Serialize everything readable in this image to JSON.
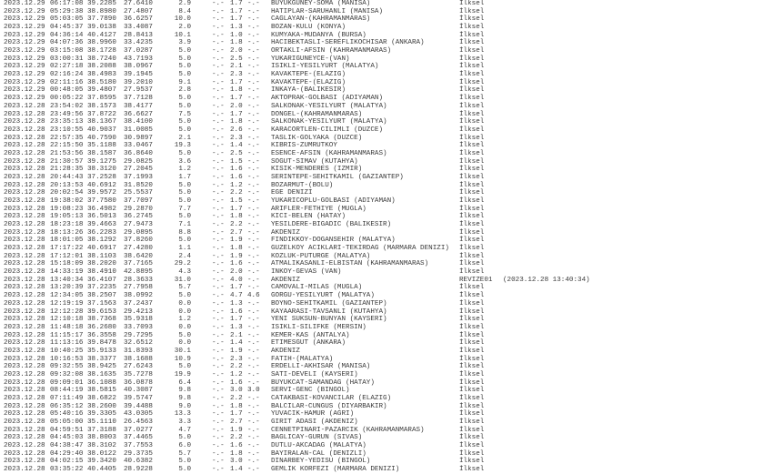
{
  "rows": [
    {
      "date": "2023.12.29",
      "time": "06:17:08",
      "lat": "39.2285",
      "lon": "27.6410",
      "depth": "2.9",
      "md": "-.-",
      "ml": "1.7",
      "mw": "-.-",
      "location": "BUYUKGUNEY-SOMA (MANISA)",
      "status": "İlksel"
    },
    {
      "date": "2023.12.29",
      "time": "05:29:38",
      "lat": "38.8980",
      "lon": "27.4807",
      "depth": "8.4",
      "md": "-.-",
      "ml": "1.7",
      "mw": "-.-",
      "location": "HATIPLAR-SARUHANLI (MANISA)",
      "status": "İlksel"
    },
    {
      "date": "2023.12.29",
      "time": "05:03:05",
      "lat": "37.7890",
      "lon": "36.6257",
      "depth": "10.0",
      "md": "-.-",
      "ml": "1.7",
      "mw": "-.-",
      "location": "CAGLAYAN-(KAHRAMANMARAS)",
      "status": "İlksel"
    },
    {
      "date": "2023.12.29",
      "time": "04:45:37",
      "lat": "39.0138",
      "lon": "33.4087",
      "depth": "2.0",
      "md": "-.-",
      "ml": "1.3",
      "mw": "-.-",
      "location": "BOZAN-KULU (KONYA)",
      "status": "İlksel"
    },
    {
      "date": "2023.12.29",
      "time": "04:36:14",
      "lat": "40.4127",
      "lon": "28.8413",
      "depth": "10.1",
      "md": "-.-",
      "ml": "1.0",
      "mw": "-.-",
      "location": "KUMYAKA-MUDANYA (BURSA)",
      "status": "İlksel"
    },
    {
      "date": "2023.12.29",
      "time": "04:07:36",
      "lat": "38.9960",
      "lon": "33.4235",
      "depth": "3.9",
      "md": "-.-",
      "ml": "1.8",
      "mw": "-.-",
      "location": "HACIBEKTASLI-SEREFLIKOCHISAR (ANKARA)",
      "status": "İlksel"
    },
    {
      "date": "2023.12.29",
      "time": "03:15:08",
      "lat": "38.1728",
      "lon": "37.0287",
      "depth": "5.0",
      "md": "-.-",
      "ml": "2.0",
      "mw": "-.-",
      "location": "ORTAKLI-AFSIN (KAHRAMANMARAS)",
      "status": "İlksel"
    },
    {
      "date": "2023.12.29",
      "time": "03:00:31",
      "lat": "38.7240",
      "lon": "43.7193",
      "depth": "5.0",
      "md": "-.-",
      "ml": "2.5",
      "mw": "-.-",
      "location": "YUKARIGUNEYCE-(VAN)",
      "status": "İlksel"
    },
    {
      "date": "2023.12.29",
      "time": "02:27:18",
      "lat": "38.2088",
      "lon": "38.0967",
      "depth": "5.0",
      "md": "-.-",
      "ml": "2.1",
      "mw": "-.-",
      "location": "ISIKLI-YESILYURT (MALATYA)",
      "status": "İlksel"
    },
    {
      "date": "2023.12.29",
      "time": "02:16:24",
      "lat": "38.4983",
      "lon": "39.1945",
      "depth": "5.0",
      "md": "-.-",
      "ml": "2.3",
      "mw": "-.-",
      "location": "KAVAKTEPE-(ELAZIG)",
      "status": "İlksel"
    },
    {
      "date": "2023.12.29",
      "time": "02:11:16",
      "lat": "38.5180",
      "lon": "39.2010",
      "depth": "9.1",
      "md": "-.-",
      "ml": "1.7",
      "mw": "-.-",
      "location": "KAVAKTEPE-(ELAZIG)",
      "status": "İlksel"
    },
    {
      "date": "2023.12.29",
      "time": "00:48:05",
      "lat": "39.4807",
      "lon": "27.9537",
      "depth": "2.8",
      "md": "-.-",
      "ml": "1.8",
      "mw": "-.-",
      "location": "INKAYA-(BALIKESIR)",
      "status": "İlksel"
    },
    {
      "date": "2023.12.29",
      "time": "00:05:22",
      "lat": "37.8595",
      "lon": "37.7128",
      "depth": "5.0",
      "md": "-.-",
      "ml": "1.7",
      "mw": "-.-",
      "location": "AKTOPRAK-GOLBASI (ADIYAMAN)",
      "status": "İlksel"
    },
    {
      "date": "2023.12.28",
      "time": "23:54:02",
      "lat": "38.1573",
      "lon": "38.4177",
      "depth": "5.0",
      "md": "-.-",
      "ml": "2.0",
      "mw": "-.-",
      "location": "SALKONAK-YESILYURT (MALATYA)",
      "status": "İlksel"
    },
    {
      "date": "2023.12.28",
      "time": "23:49:56",
      "lat": "37.8722",
      "lon": "36.6627",
      "depth": "7.5",
      "md": "-.-",
      "ml": "1.7",
      "mw": "-.-",
      "location": "DONGEL-(KAHRAMANMARAS)",
      "status": "İlksel"
    },
    {
      "date": "2023.12.28",
      "time": "23:35:13",
      "lat": "38.1367",
      "lon": "38.4100",
      "depth": "5.0",
      "md": "-.-",
      "ml": "1.8",
      "mw": "-.-",
      "location": "SALKONAK-YESILYURT (MALATYA)",
      "status": "İlksel"
    },
    {
      "date": "2023.12.28",
      "time": "23:10:55",
      "lat": "40.9037",
      "lon": "31.0085",
      "depth": "5.0",
      "md": "-.-",
      "ml": "2.6",
      "mw": "-.-",
      "location": "KARACORTLEN-CILIMLI (DUZCE)",
      "status": "İlksel"
    },
    {
      "date": "2023.12.28",
      "time": "22:57:35",
      "lat": "40.7590",
      "lon": "30.9897",
      "depth": "2.1",
      "md": "-.-",
      "ml": "2.3",
      "mw": "-.-",
      "location": "TASLIK-GOLYAKA (DUZCE)",
      "status": "İlksel"
    },
    {
      "date": "2023.12.28",
      "time": "22:15:50",
      "lat": "35.1188",
      "lon": "33.0467",
      "depth": "19.3",
      "md": "-.-",
      "ml": "1.4",
      "mw": "-.-",
      "location": "KIBRIS-ZUMRUTKOY",
      "status": "İlksel"
    },
    {
      "date": "2023.12.28",
      "time": "21:53:56",
      "lat": "38.1587",
      "lon": "36.8640",
      "depth": "5.0",
      "md": "-.-",
      "ml": "2.5",
      "mw": "-.-",
      "location": "ESENCE-AFSIN (KAHRAMANMARAS)",
      "status": "İlksel"
    },
    {
      "date": "2023.12.28",
      "time": "21:30:57",
      "lat": "39.1275",
      "lon": "29.0825",
      "depth": "3.6",
      "md": "-.-",
      "ml": "1.5",
      "mw": "-.-",
      "location": "SOGUT-SIMAV (KUTAHYA)",
      "status": "İlksel"
    },
    {
      "date": "2023.12.28",
      "time": "21:28:35",
      "lat": "38.3120",
      "lon": "27.2045",
      "depth": "1.2",
      "md": "-.-",
      "ml": "1.6",
      "mw": "-.-",
      "location": "KISIK-MENDERES (IZMIR)",
      "status": "İlksel"
    },
    {
      "date": "2023.12.28",
      "time": "20:44:43",
      "lat": "37.2528",
      "lon": "37.1993",
      "depth": "1.7",
      "md": "-.-",
      "ml": "1.6",
      "mw": "-.-",
      "location": "SERINTEPE-SEHITKAMIL (GAZIANTEP)",
      "status": "İlksel"
    },
    {
      "date": "2023.12.28",
      "time": "20:13:53",
      "lat": "40.6912",
      "lon": "31.8520",
      "depth": "5.0",
      "md": "-.-",
      "ml": "1.2",
      "mw": "-.-",
      "location": "BOZARMUT-(BOLU)",
      "status": "İlksel"
    },
    {
      "date": "2023.12.28",
      "time": "20:02:54",
      "lat": "39.9572",
      "lon": "25.5537",
      "depth": "5.0",
      "md": "-.-",
      "ml": "2.2",
      "mw": "-.-",
      "location": "EGE DENIZI",
      "status": "İlksel"
    },
    {
      "date": "2023.12.28",
      "time": "19:38:02",
      "lat": "37.7580",
      "lon": "37.7097",
      "depth": "5.0",
      "md": "-.-",
      "ml": "1.5",
      "mw": "-.-",
      "location": "YUKARICOPLU-GOLBASI (ADIYAMAN)",
      "status": "İlksel"
    },
    {
      "date": "2023.12.28",
      "time": "19:08:23",
      "lat": "36.4982",
      "lon": "29.2870",
      "depth": "7.7",
      "md": "-.-",
      "ml": "1.7",
      "mw": "-.-",
      "location": "ARIFLER-FETHIYE (MUGLA)",
      "status": "İlksel"
    },
    {
      "date": "2023.12.28",
      "time": "19:05:13",
      "lat": "36.5013",
      "lon": "36.2745",
      "depth": "5.0",
      "md": "-.-",
      "ml": "1.8",
      "mw": "-.-",
      "location": "KICI-BELEN (HATAY)",
      "status": "İlksel"
    },
    {
      "date": "2023.12.28",
      "time": "18:23:18",
      "lat": "39.4663",
      "lon": "27.9473",
      "depth": "7.1",
      "md": "-.-",
      "ml": "2.2",
      "mw": "-.-",
      "location": "YESILDERE-BIGADIC (BALIKESIR)",
      "status": "İlksel"
    },
    {
      "date": "2023.12.28",
      "time": "18:13:26",
      "lat": "36.2283",
      "lon": "29.0895",
      "depth": "8.8",
      "md": "-.-",
      "ml": "2.7",
      "mw": "-.-",
      "location": "AKDENIZ",
      "status": "İlksel"
    },
    {
      "date": "2023.12.28",
      "time": "18:01:05",
      "lat": "38.1292",
      "lon": "37.8260",
      "depth": "5.0",
      "md": "-.-",
      "ml": "1.9",
      "mw": "-.-",
      "location": "FINDIKKOY-DOGANSEHIR (MALATYA)",
      "status": "İlksel"
    },
    {
      "date": "2023.12.28",
      "time": "17:17:22",
      "lat": "40.6917",
      "lon": "27.4280",
      "depth": "1.1",
      "md": "-.-",
      "ml": "1.8",
      "mw": "-.-",
      "location": "GUZELKOY ACIKLARI-TEKIRDAG (MARMARA DENIZI)",
      "status": "İlksel"
    },
    {
      "date": "2023.12.28",
      "time": "17:12:01",
      "lat": "38.1103",
      "lon": "38.6420",
      "depth": "2.4",
      "md": "-.-",
      "ml": "1.9",
      "mw": "-.-",
      "location": "KOZLUK-PUTURGE (MALATYA)",
      "status": "İlksel"
    },
    {
      "date": "2023.12.28",
      "time": "15:18:09",
      "lat": "38.2020",
      "lon": "37.7165",
      "depth": "29.2",
      "md": "-.-",
      "ml": "1.6",
      "mw": "-.-",
      "location": "ATMALIKASANLI-ELBISTAN (KAHRAMANMARAS)",
      "status": "İlksel"
    },
    {
      "date": "2023.12.28",
      "time": "14:33:19",
      "lat": "38.4910",
      "lon": "42.8895",
      "depth": "4.3",
      "md": "-.-",
      "ml": "2.0",
      "mw": "-.-",
      "location": "INKOY-GEVAS (VAN)",
      "status": "İlksel"
    },
    {
      "date": "2023.12.28",
      "time": "13:40:34",
      "lat": "36.4107",
      "lon": "28.3633",
      "depth": "31.0",
      "md": "-.-",
      "ml": "4.0",
      "mw": "-.-",
      "location": "AKDENIZ",
      "status": "REVIZE01",
      "revision": "(2023.12.28 13:40:34)"
    },
    {
      "date": "2023.12.28",
      "time": "13:20:39",
      "lat": "37.2235",
      "lon": "27.7958",
      "depth": "5.7",
      "md": "-.-",
      "ml": "1.7",
      "mw": "-.-",
      "location": "CAMOVALI-MILAS (MUGLA)",
      "status": "İlksel"
    },
    {
      "date": "2023.12.28",
      "time": "12:34:05",
      "lat": "38.2507",
      "lon": "38.0992",
      "depth": "5.0",
      "md": "-.-",
      "ml": "4.7",
      "mw": "4.6",
      "location": "GORGU-YESILYURT (MALATYA)",
      "status": "İlksel"
    },
    {
      "date": "2023.12.28",
      "time": "12:19:19",
      "lat": "37.1563",
      "lon": "37.2437",
      "depth": "0.0",
      "md": "-.-",
      "ml": "1.3",
      "mw": "-.-",
      "location": "BOYNO-SEHITKAMIL (GAZIANTEP)",
      "status": "İlksel"
    },
    {
      "date": "2023.12.28",
      "time": "12:12:28",
      "lat": "39.6153",
      "lon": "29.4213",
      "depth": "0.0",
      "md": "-.-",
      "ml": "1.6",
      "mw": "-.-",
      "location": "KAYAARASI-TAVSANLI (KUTAHYA)",
      "status": "İlksel"
    },
    {
      "date": "2023.12.28",
      "time": "12:10:18",
      "lat": "38.7368",
      "lon": "35.9318",
      "depth": "1.2",
      "md": "-.-",
      "ml": "1.7",
      "mw": "-.-",
      "location": "YENI SUKSUN-BUNYAN (KAYSERI)",
      "status": "İlksel"
    },
    {
      "date": "2023.12.28",
      "time": "11:48:18",
      "lat": "36.2680",
      "lon": "33.7093",
      "depth": "0.0",
      "md": "-.-",
      "ml": "1.3",
      "mw": "-.-",
      "location": "ISIKLI-SILIFKE (MERSIN)",
      "status": "İlksel"
    },
    {
      "date": "2023.12.28",
      "time": "11:15:17",
      "lat": "36.3558",
      "lon": "29.7295",
      "depth": "5.0",
      "md": "-.-",
      "ml": "2.1",
      "mw": "-.-",
      "location": "KEMER-KAS (ANTALYA)",
      "status": "İlksel"
    },
    {
      "date": "2023.12.28",
      "time": "11:13:16",
      "lat": "39.8478",
      "lon": "32.6512",
      "depth": "0.0",
      "md": "-.-",
      "ml": "1.4",
      "mw": "-.-",
      "location": "ETIMESGUT (ANKARA)",
      "status": "İlksel"
    },
    {
      "date": "2023.12.28",
      "time": "10:40:25",
      "lat": "35.9133",
      "lon": "31.8393",
      "depth": "30.1",
      "md": "-.-",
      "ml": "1.9",
      "mw": "-.-",
      "location": "AKDENIZ",
      "status": "İlksel"
    },
    {
      "date": "2023.12.28",
      "time": "10:16:53",
      "lat": "38.3377",
      "lon": "38.1688",
      "depth": "10.9",
      "md": "-.-",
      "ml": "2.3",
      "mw": "-.-",
      "location": "FATIH-(MALATYA)",
      "status": "İlksel"
    },
    {
      "date": "2023.12.28",
      "time": "09:32:55",
      "lat": "38.9425",
      "lon": "27.6243",
      "depth": "5.0",
      "md": "-.-",
      "ml": "2.2",
      "mw": "-.-",
      "location": "ERDELLI-AKHISAR (MANISA)",
      "status": "İlksel"
    },
    {
      "date": "2023.12.28",
      "time": "09:32:08",
      "lat": "38.1635",
      "lon": "35.7278",
      "depth": "19.9",
      "md": "-.-",
      "ml": "1.2",
      "mw": "-.-",
      "location": "SATI-DEVELI (KAYSERI)",
      "status": "İlksel"
    },
    {
      "date": "2023.12.28",
      "time": "09:09:01",
      "lat": "36.1088",
      "lon": "36.0878",
      "depth": "6.4",
      "md": "-.-",
      "ml": "1.6",
      "mw": "-.-",
      "location": "BUYUKCAT-SAMANDAG (HATAY)",
      "status": "İlksel"
    },
    {
      "date": "2023.12.28",
      "time": "08:44:19",
      "lat": "38.5815",
      "lon": "40.3087",
      "depth": "9.8",
      "md": "-.-",
      "ml": "3.0",
      "mw": "3.0",
      "location": "SERVI-GENC (BINGOL)",
      "status": "İlksel"
    },
    {
      "date": "2023.12.28",
      "time": "07:11:49",
      "lat": "38.6822",
      "lon": "39.5747",
      "depth": "9.8",
      "md": "-.-",
      "ml": "2.2",
      "mw": "-.-",
      "location": "CATAKBASI-KOVANCILAR (ELAZIG)",
      "status": "İlksel"
    },
    {
      "date": "2023.12.28",
      "time": "06:35:12",
      "lat": "38.2600",
      "lon": "39.4488",
      "depth": "9.0",
      "md": "-.-",
      "ml": "1.8",
      "mw": "-.-",
      "location": "BALCILAR-CUNGUS (DIYARBAKIR)",
      "status": "İlksel"
    },
    {
      "date": "2023.12.28",
      "time": "05:40:16",
      "lat": "39.3305",
      "lon": "43.0305",
      "depth": "13.3",
      "md": "-.-",
      "ml": "1.7",
      "mw": "-.-",
      "location": "YUVACIK-HAMUR (AGRI)",
      "status": "İlksel"
    },
    {
      "date": "2023.12.28",
      "time": "05:05:00",
      "lat": "35.1110",
      "lon": "26.4563",
      "depth": "3.3",
      "md": "-.-",
      "ml": "2.7",
      "mw": "-.-",
      "location": "GIRIT ADASI (AKDENIZ)",
      "status": "İlksel"
    },
    {
      "date": "2023.12.28",
      "time": "04:59:51",
      "lat": "37.3188",
      "lon": "37.0277",
      "depth": "4.7",
      "md": "-.-",
      "ml": "1.9",
      "mw": "-.-",
      "location": "CENNETPINARI-PAZARCIK (KAHRAMANMARAS)",
      "status": "İlksel"
    },
    {
      "date": "2023.12.28",
      "time": "04:45:03",
      "lat": "38.8003",
      "lon": "37.4465",
      "depth": "5.0",
      "md": "-.-",
      "ml": "2.2",
      "mw": "-.-",
      "location": "BAGLICAY-GURUN (SIVAS)",
      "status": "İlksel"
    },
    {
      "date": "2023.12.28",
      "time": "04:38:47",
      "lat": "38.3102",
      "lon": "37.7553",
      "depth": "6.0",
      "md": "-.-",
      "ml": "1.6",
      "mw": "-.-",
      "location": "DUTLU-AKCADAG (MALATYA)",
      "status": "İlksel"
    },
    {
      "date": "2023.12.28",
      "time": "04:29:40",
      "lat": "38.0122",
      "lon": "29.3735",
      "depth": "5.7",
      "md": "-.-",
      "ml": "1.8",
      "mw": "-.-",
      "location": "BAYIRALAN-CAL (DENIZLI)",
      "status": "İlksel"
    },
    {
      "date": "2023.12.28",
      "time": "04:02:15",
      "lat": "39.3420",
      "lon": "40.6382",
      "depth": "5.0",
      "md": "-.-",
      "ml": "3.0",
      "mw": "-.-",
      "location": "DINARBEY-YEDISU (BINGOL)",
      "status": "İlksel"
    },
    {
      "date": "2023.12.28",
      "time": "03:35:22",
      "lat": "40.4405",
      "lon": "28.9228",
      "depth": "5.0",
      "md": "-.-",
      "ml": "1.4",
      "mw": "-.-",
      "location": "GEMLIK KORFEZI (MARMARA DENIZI)",
      "status": "İlksel"
    }
  ]
}
